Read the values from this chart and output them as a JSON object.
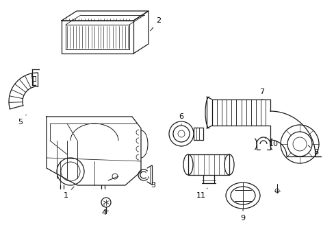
{
  "background_color": "#ffffff",
  "line_color": "#1a1a1a",
  "label_color": "#000000",
  "figsize": [
    4.89,
    3.6
  ],
  "dpi": 100,
  "xlim": [
    0,
    489
  ],
  "ylim": [
    0,
    360
  ]
}
